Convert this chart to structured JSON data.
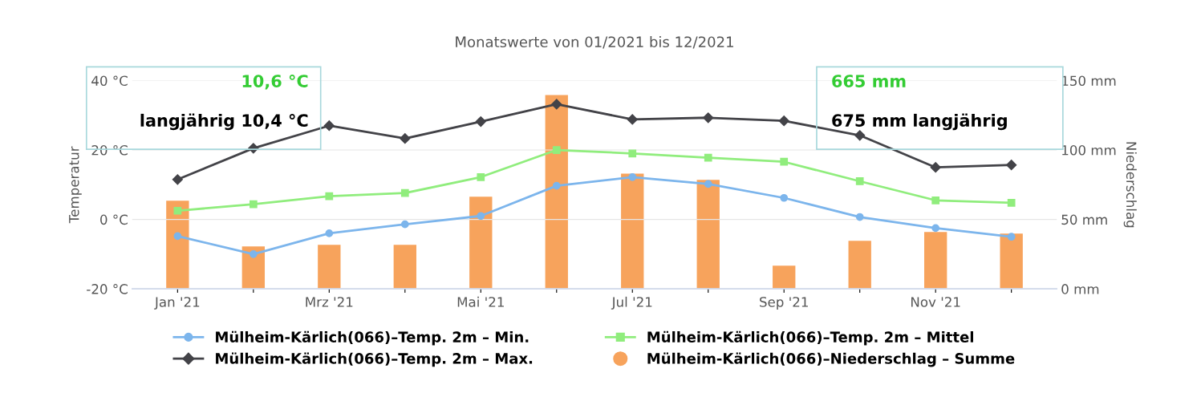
{
  "chart_data": {
    "type": "line",
    "title": "Monatswerte von 01/2021 bis 12/2021",
    "ylabel": "Temperatur",
    "y2label": "Niederschlag",
    "categories": [
      "Jan '21",
      null,
      "Mrz '21",
      null,
      "Mai '21",
      null,
      "Jul '21",
      null,
      "Sep '21",
      null,
      "Nov '21",
      null
    ],
    "series": [
      {
        "name": "Mülheim-Kärlich(066)–Temp. 2m – Min.",
        "color": "#7cb5ec",
        "marker": "circle",
        "values": [
          -4.8,
          -10,
          -4,
          -1.4,
          1,
          9.7,
          12.2,
          10.2,
          6.2,
          0.7,
          -2.5,
          -5
        ]
      },
      {
        "name": "Mülheim-Kärlich(066)–Temp. 2m – Max.",
        "color": "#434348",
        "marker": "diamond",
        "values": [
          11.5,
          20.5,
          27,
          23.3,
          28.2,
          33.2,
          28.8,
          29.3,
          28.4,
          24.2,
          15,
          15.7
        ]
      },
      {
        "name": "Mülheim-Kärlich(066)–Temp. 2m – Mittel",
        "color": "#90ed7d",
        "marker": "square",
        "values": [
          2.5,
          4.4,
          6.7,
          7.6,
          12.2,
          20,
          19,
          17.8,
          16.6,
          11,
          5.5,
          4.8
        ]
      },
      {
        "name": "Mülheim-Kärlich(066)–Niederschlag – Summe",
        "color": "#f7a35c",
        "type": "bar",
        "axis": "y2",
        "values": [
          63.5,
          30.6,
          31.7,
          31.7,
          66.4,
          139.6,
          83,
          78.5,
          16.7,
          34.6,
          41,
          39.8
        ]
      }
    ],
    "ylim": [
      -20,
      40
    ],
    "yticks": [
      {
        "value": -20,
        "label": "-20 °C"
      },
      {
        "value": 0,
        "label": "0 °C"
      },
      {
        "value": 20,
        "label": "20 °C"
      },
      {
        "value": 40,
        "label": "40 °C"
      }
    ],
    "y2lim": [
      0,
      150
    ],
    "y2ticks": [
      {
        "value": 0,
        "label": "0 mm"
      },
      {
        "value": 50,
        "label": "50 mm"
      },
      {
        "value": 100,
        "label": "100 mm"
      },
      {
        "value": 150,
        "label": "150 mm"
      }
    ],
    "grid": "y",
    "legend": "bottom",
    "annotations": [
      "10,6 °C",
      "langjährig 10,4 °C",
      "665 mm",
      "675 mm langjährig"
    ]
  }
}
